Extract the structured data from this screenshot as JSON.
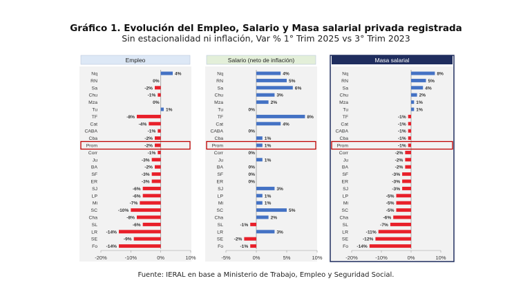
{
  "title": "Gráfico 1. Evolución del Empleo, Salario y Masa salarial privada registrada",
  "subtitle": "Sin estacionalidad ni inflación, Var % 1° Trim 2025 vs 3° Trim 2023",
  "source": "Fuente: IERAL en base a Ministerio de Trabajo, Empleo y Seguridad Social.",
  "colors": {
    "positive": "#4472c4",
    "negative": "#e8202a",
    "highlight_border": "#c00000",
    "empleo_header_bg": "#dde8f6",
    "salario_header_bg": "#e3efd9",
    "masa_header_bg": "#1f2d5e",
    "masa_border": "#1f2d5e",
    "panel_bg": "#f2f2f2",
    "axis": "#999999"
  },
  "chart_data": [
    {
      "type": "bar",
      "orientation": "horizontal",
      "title": "Empleo",
      "categories": [
        "Nq",
        "RN",
        "Sa",
        "Chu",
        "Mza",
        "Tu",
        "TF",
        "Cat",
        "CABA",
        "Cba",
        "Prom",
        "Corr",
        "Ju",
        "BA",
        "SF",
        "ER",
        "SJ",
        "LP",
        "Mi",
        "SC",
        "Cha",
        "SL",
        "LR",
        "SE",
        "Fo"
      ],
      "values": [
        4,
        0,
        -2,
        -1,
        0,
        1,
        -8,
        -4,
        -1,
        -2,
        -2,
        -1,
        -3,
        -2,
        -3,
        -3,
        -6,
        -6,
        -7,
        -10,
        -8,
        -6,
        -14,
        -9,
        -14
      ],
      "labels": [
        "4%",
        "0%",
        "-2%",
        "-1%",
        "0%",
        "1%",
        "-8%",
        "-4%",
        "-1%",
        "-2%",
        "-2%",
        "-1%",
        "-3%",
        "-2%",
        "-3%",
        "-3%",
        "-6%",
        "-6%",
        "-7%",
        "-10%",
        "-8%",
        "-6%",
        "-14%",
        "-9%",
        "-14%"
      ],
      "xlim": [
        -20,
        10
      ],
      "ticks": [
        -20,
        -10,
        0,
        10
      ],
      "tick_labels": [
        "-20%",
        "-10%",
        "0%",
        "10%"
      ],
      "highlight": "Prom"
    },
    {
      "type": "bar",
      "orientation": "horizontal",
      "title": "Salario (neto de inflación)",
      "categories": [
        "Nq",
        "RN",
        "Sa",
        "Chu",
        "Mza",
        "Tu",
        "TF",
        "Cat",
        "CABA",
        "Cba",
        "Prom",
        "Corr",
        "Ju",
        "BA",
        "SF",
        "ER",
        "SJ",
        "LP",
        "Mi",
        "SC",
        "Cha",
        "SL",
        "LR",
        "SE",
        "Fo"
      ],
      "values": [
        4,
        5,
        6,
        3,
        2,
        0,
        8,
        4,
        0,
        1,
        1,
        0,
        1,
        0,
        0,
        0,
        3,
        1,
        1,
        5,
        2,
        -1,
        3,
        -2,
        -1
      ],
      "labels": [
        "4%",
        "5%",
        "6%",
        "3%",
        "2%",
        "0%",
        "8%",
        "4%",
        "0%",
        "1%",
        "1%",
        "0%",
        "1%",
        "0%",
        "0%",
        "0%",
        "3%",
        "1%",
        "1%",
        "5%",
        "2%",
        "-1%",
        "3%",
        "-2%",
        "-1%"
      ],
      "xlim": [
        -5,
        10
      ],
      "ticks": [
        -5,
        0,
        5,
        10
      ],
      "tick_labels": [
        "-5%",
        "0%",
        "5%",
        "10%"
      ],
      "highlight": "Prom"
    },
    {
      "type": "bar",
      "orientation": "horizontal",
      "title": "Masa salarial",
      "categories": [
        "Nq",
        "RN",
        "Sa",
        "Chu",
        "Mza",
        "Tu",
        "TF",
        "Cat",
        "CABA",
        "Cba",
        "Prom",
        "Corr",
        "Ju",
        "BA",
        "SF",
        "ER",
        "SJ",
        "LP",
        "Mi",
        "SC",
        "Cha",
        "SL",
        "LR",
        "SE",
        "Fo"
      ],
      "values": [
        8,
        5,
        4,
        2,
        1,
        1,
        -1,
        -1,
        -1,
        -1,
        -1,
        -2,
        -2,
        -2,
        -3,
        -3,
        -3,
        -5,
        -5,
        -5,
        -6,
        -7,
        -11,
        -12,
        -14
      ],
      "labels": [
        "8%",
        "5%",
        "4%",
        "2%",
        "1%",
        "1%",
        "-1%",
        "-1%",
        "-1%",
        "-1%",
        "-1%",
        "-2%",
        "-2%",
        "-2%",
        "-3%",
        "-3%",
        "-3%",
        "-5%",
        "-5%",
        "-5%",
        "-6%",
        "-7%",
        "-11%",
        "-12%",
        "-14%"
      ],
      "xlim": [
        -20,
        10
      ],
      "ticks": [
        -20,
        -10,
        0,
        10
      ],
      "tick_labels": [
        "-20%",
        "-10%",
        "0%",
        "10%"
      ],
      "highlight": "Prom"
    }
  ]
}
